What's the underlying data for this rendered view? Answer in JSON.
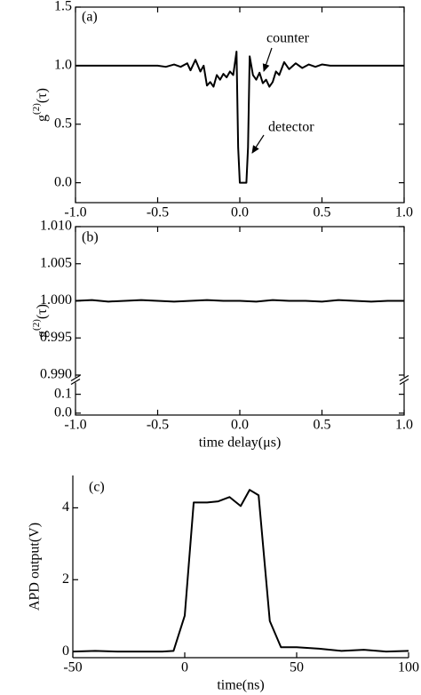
{
  "chart_data": [
    {
      "type": "line",
      "panel_label": "(a)",
      "ylabel": {
        "base": "g",
        "sup": "(2)",
        "rest": "(τ)"
      },
      "x": [
        -1.0,
        -0.6,
        -0.5,
        -0.45,
        -0.4,
        -0.36,
        -0.32,
        -0.3,
        -0.27,
        -0.24,
        -0.22,
        -0.2,
        -0.18,
        -0.16,
        -0.14,
        -0.12,
        -0.1,
        -0.08,
        -0.06,
        -0.04,
        -0.02,
        -0.01,
        0.0,
        0.04,
        0.05,
        0.06,
        0.08,
        0.1,
        0.12,
        0.14,
        0.16,
        0.18,
        0.2,
        0.22,
        0.24,
        0.27,
        0.3,
        0.34,
        0.38,
        0.42,
        0.46,
        0.5,
        0.55,
        0.6,
        1.0
      ],
      "values": [
        1.0,
        1.0,
        1.0,
        0.99,
        1.01,
        0.99,
        1.02,
        0.96,
        1.05,
        0.95,
        1.0,
        0.83,
        0.86,
        0.82,
        0.92,
        0.88,
        0.93,
        0.9,
        0.95,
        0.92,
        1.12,
        0.3,
        0.0,
        0.0,
        0.3,
        1.08,
        0.92,
        0.88,
        0.94,
        0.85,
        0.88,
        0.82,
        0.86,
        0.95,
        0.92,
        1.03,
        0.97,
        1.02,
        0.98,
        1.01,
        0.99,
        1.01,
        1.0,
        1.0,
        1.0
      ],
      "color": "#000000",
      "xlim": [
        -1.0,
        1.0
      ],
      "xticks": [
        {
          "value": -1.0,
          "label": "-1.0"
        },
        -0.5,
        {
          "value": 0.0,
          "label": "0.0"
        },
        0.5,
        {
          "value": 1.0,
          "label": "1.0"
        }
      ],
      "ylim": [
        -0.17,
        1.5
      ],
      "yticks": [
        {
          "value": 0.0,
          "label": "0.0"
        },
        0.5,
        {
          "value": 1.0,
          "label": "1.0"
        },
        1.5
      ],
      "annotations": [
        {
          "text": "counter"
        },
        {
          "text": "detector"
        }
      ]
    },
    {
      "type": "line",
      "panel_label": "(b)",
      "ylabel": {
        "base": "g",
        "sup": "(2)",
        "rest": "(τ)"
      },
      "xlabel": "time delay(μs)",
      "x": [
        -1.0,
        -0.9,
        -0.8,
        -0.7,
        -0.6,
        -0.5,
        -0.4,
        -0.3,
        -0.2,
        -0.1,
        0.0,
        0.1,
        0.2,
        0.3,
        0.4,
        0.5,
        0.6,
        0.7,
        0.8,
        0.9,
        1.0
      ],
      "values": [
        1.0,
        1.0001,
        0.9999,
        1.0,
        1.0001,
        1.0,
        0.9999,
        1.0,
        1.0001,
        1.0,
        1.0,
        0.9999,
        1.0001,
        1.0,
        1.0,
        0.9999,
        1.0001,
        1.0,
        0.9999,
        1.0,
        1.0
      ],
      "color": "#000000",
      "xlim": [
        -1.0,
        1.0
      ],
      "xticks": [
        {
          "value": -1.0,
          "label": "-1.0"
        },
        -0.5,
        {
          "value": 0.0,
          "label": "0.0"
        },
        0.5,
        {
          "value": 1.0,
          "label": "1.0"
        }
      ],
      "ylim": [
        0.99,
        1.01
      ],
      "yticks": [
        {
          "value": 0.99,
          "label": "0.990"
        },
        0.995,
        {
          "value": 1.0,
          "label": "1.000"
        },
        1.005,
        {
          "value": 1.01,
          "label": "1.010"
        }
      ],
      "ylim_lower": [
        -0.01,
        0.15
      ],
      "yticks_lower": [
        {
          "value": 0.0,
          "label": "0.0"
        },
        0.1
      ]
    },
    {
      "type": "line",
      "panel_label": "(c)",
      "ylabel": "APD output(V)",
      "xlabel": "time(ns)",
      "x": [
        -50,
        -40,
        -30,
        -20,
        -10,
        -5,
        0,
        4,
        10,
        15,
        20,
        25,
        29,
        33,
        38,
        43,
        50,
        60,
        70,
        80,
        90,
        100
      ],
      "values": [
        0.0,
        0.02,
        0.0,
        0.0,
        0.0,
        0.02,
        1.0,
        4.15,
        4.15,
        4.18,
        4.3,
        4.05,
        4.5,
        4.35,
        0.85,
        0.12,
        0.12,
        0.08,
        0.02,
        0.05,
        0.0,
        0.02
      ],
      "color": "#000000",
      "xlim": [
        -50,
        100
      ],
      "xticks": [
        -50,
        0,
        50,
        100
      ],
      "ylim": [
        -0.17,
        4.9
      ],
      "yticks": [
        0,
        2,
        4
      ]
    }
  ]
}
